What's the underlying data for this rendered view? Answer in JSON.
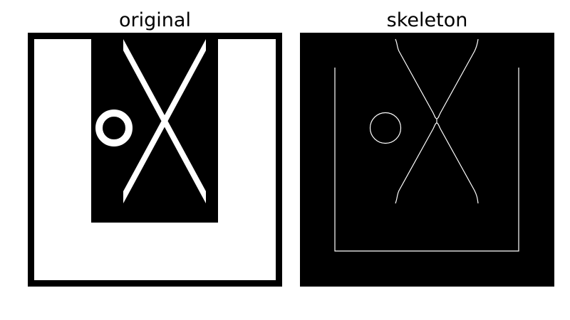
{
  "panels": [
    {
      "title": "original"
    },
    {
      "title": "skeleton"
    }
  ],
  "colors": {
    "background": "#000000",
    "foreground": "#ffffff"
  }
}
